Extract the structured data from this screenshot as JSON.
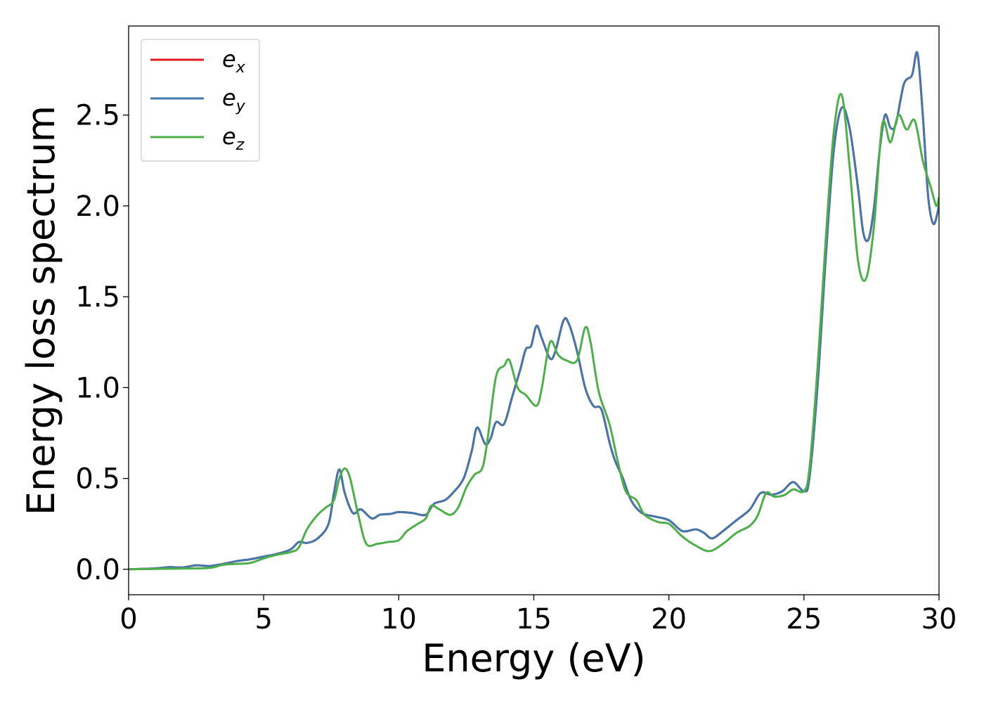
{
  "chart_data": {
    "type": "line",
    "title": "",
    "xlabel": "Energy (eV)",
    "ylabel": "Energy loss spectrum",
    "xlim": [
      0,
      30
    ],
    "ylim": [
      -0.14,
      2.99
    ],
    "xticks": [
      0,
      5,
      10,
      15,
      20,
      25,
      30
    ],
    "xtick_labels": [
      "0",
      "5",
      "10",
      "15",
      "20",
      "25",
      "30"
    ],
    "yticks": [
      0.0,
      0.5,
      1.0,
      1.5,
      2.0,
      2.5
    ],
    "ytick_labels": [
      "0.0",
      "0.5",
      "1.0",
      "1.5",
      "2.0",
      "2.5"
    ],
    "grid": false,
    "legend_position": "top-left",
    "series": [
      {
        "name": "e_x",
        "label_main": "e",
        "label_sub": "x",
        "color": "#e41a1c",
        "points": [
          [
            0,
            0
          ],
          [
            1,
            0.005
          ],
          [
            1.5,
            0.012
          ],
          [
            2,
            0.01
          ],
          [
            2.5,
            0.022
          ],
          [
            3,
            0.018
          ],
          [
            3.5,
            0.03
          ],
          [
            4,
            0.045
          ],
          [
            4.5,
            0.055
          ],
          [
            5,
            0.07
          ],
          [
            5.5,
            0.085
          ],
          [
            6,
            0.11
          ],
          [
            6.3,
            0.15
          ],
          [
            6.6,
            0.145
          ],
          [
            7,
            0.17
          ],
          [
            7.4,
            0.25
          ],
          [
            7.6,
            0.42
          ],
          [
            7.8,
            0.55
          ],
          [
            8,
            0.42
          ],
          [
            8.3,
            0.31
          ],
          [
            8.6,
            0.33
          ],
          [
            9,
            0.28
          ],
          [
            9.3,
            0.3
          ],
          [
            9.7,
            0.305
          ],
          [
            10,
            0.315
          ],
          [
            10.5,
            0.31
          ],
          [
            11,
            0.3
          ],
          [
            11.3,
            0.36
          ],
          [
            11.7,
            0.38
          ],
          [
            12,
            0.42
          ],
          [
            12.4,
            0.5
          ],
          [
            12.7,
            0.65
          ],
          [
            12.9,
            0.78
          ],
          [
            13.2,
            0.69
          ],
          [
            13.4,
            0.72
          ],
          [
            13.6,
            0.81
          ],
          [
            13.9,
            0.8
          ],
          [
            14.2,
            0.95
          ],
          [
            14.5,
            1.1
          ],
          [
            14.7,
            1.21
          ],
          [
            14.9,
            1.23
          ],
          [
            15.1,
            1.34
          ],
          [
            15.3,
            1.27
          ],
          [
            15.6,
            1.16
          ],
          [
            15.8,
            1.2
          ],
          [
            16.1,
            1.37
          ],
          [
            16.3,
            1.35
          ],
          [
            16.6,
            1.2
          ],
          [
            16.9,
            1.0
          ],
          [
            17.2,
            0.9
          ],
          [
            17.5,
            0.88
          ],
          [
            17.8,
            0.7
          ],
          [
            18,
            0.6
          ],
          [
            18.3,
            0.5
          ],
          [
            18.6,
            0.38
          ],
          [
            19,
            0.31
          ],
          [
            19.5,
            0.29
          ],
          [
            20,
            0.27
          ],
          [
            20.5,
            0.21
          ],
          [
            21,
            0.22
          ],
          [
            21.3,
            0.2
          ],
          [
            21.6,
            0.17
          ],
          [
            22,
            0.21
          ],
          [
            22.5,
            0.27
          ],
          [
            23,
            0.33
          ],
          [
            23.4,
            0.42
          ],
          [
            23.8,
            0.41
          ],
          [
            24.2,
            0.43
          ],
          [
            24.6,
            0.48
          ],
          [
            25,
            0.43
          ],
          [
            25.2,
            0.5
          ],
          [
            25.5,
            1.0
          ],
          [
            25.8,
            1.7
          ],
          [
            26.1,
            2.3
          ],
          [
            26.4,
            2.54
          ],
          [
            26.7,
            2.42
          ],
          [
            27,
            2.1
          ],
          [
            27.2,
            1.85
          ],
          [
            27.4,
            1.82
          ],
          [
            27.6,
            2.0
          ],
          [
            27.8,
            2.3
          ],
          [
            28,
            2.5
          ],
          [
            28.2,
            2.43
          ],
          [
            28.4,
            2.45
          ],
          [
            28.7,
            2.67
          ],
          [
            29,
            2.72
          ],
          [
            29.2,
            2.84
          ],
          [
            29.4,
            2.5
          ],
          [
            29.6,
            2.05
          ],
          [
            29.8,
            1.9
          ],
          [
            30,
            2.0
          ]
        ]
      },
      {
        "name": "e_y",
        "label_main": "e",
        "label_sub": "y",
        "color": "#4477aa",
        "points": [
          [
            0,
            0
          ],
          [
            1,
            0.005
          ],
          [
            1.5,
            0.012
          ],
          [
            2,
            0.01
          ],
          [
            2.5,
            0.022
          ],
          [
            3,
            0.018
          ],
          [
            3.5,
            0.03
          ],
          [
            4,
            0.045
          ],
          [
            4.5,
            0.055
          ],
          [
            5,
            0.07
          ],
          [
            5.5,
            0.085
          ],
          [
            6,
            0.11
          ],
          [
            6.3,
            0.15
          ],
          [
            6.6,
            0.145
          ],
          [
            7,
            0.17
          ],
          [
            7.4,
            0.25
          ],
          [
            7.6,
            0.42
          ],
          [
            7.8,
            0.55
          ],
          [
            8,
            0.42
          ],
          [
            8.3,
            0.31
          ],
          [
            8.6,
            0.33
          ],
          [
            9,
            0.28
          ],
          [
            9.3,
            0.3
          ],
          [
            9.7,
            0.305
          ],
          [
            10,
            0.315
          ],
          [
            10.5,
            0.31
          ],
          [
            11,
            0.3
          ],
          [
            11.3,
            0.36
          ],
          [
            11.7,
            0.38
          ],
          [
            12,
            0.42
          ],
          [
            12.4,
            0.5
          ],
          [
            12.7,
            0.65
          ],
          [
            12.9,
            0.78
          ],
          [
            13.2,
            0.69
          ],
          [
            13.4,
            0.72
          ],
          [
            13.6,
            0.81
          ],
          [
            13.9,
            0.8
          ],
          [
            14.2,
            0.95
          ],
          [
            14.5,
            1.1
          ],
          [
            14.7,
            1.21
          ],
          [
            14.9,
            1.23
          ],
          [
            15.1,
            1.34
          ],
          [
            15.3,
            1.27
          ],
          [
            15.6,
            1.16
          ],
          [
            15.8,
            1.2
          ],
          [
            16.1,
            1.37
          ],
          [
            16.3,
            1.35
          ],
          [
            16.6,
            1.2
          ],
          [
            16.9,
            1.0
          ],
          [
            17.2,
            0.9
          ],
          [
            17.5,
            0.88
          ],
          [
            17.8,
            0.7
          ],
          [
            18,
            0.6
          ],
          [
            18.3,
            0.5
          ],
          [
            18.6,
            0.38
          ],
          [
            19,
            0.31
          ],
          [
            19.5,
            0.29
          ],
          [
            20,
            0.27
          ],
          [
            20.5,
            0.21
          ],
          [
            21,
            0.22
          ],
          [
            21.3,
            0.2
          ],
          [
            21.6,
            0.17
          ],
          [
            22,
            0.21
          ],
          [
            22.5,
            0.27
          ],
          [
            23,
            0.33
          ],
          [
            23.4,
            0.42
          ],
          [
            23.8,
            0.41
          ],
          [
            24.2,
            0.43
          ],
          [
            24.6,
            0.48
          ],
          [
            25,
            0.43
          ],
          [
            25.2,
            0.5
          ],
          [
            25.5,
            1.0
          ],
          [
            25.8,
            1.7
          ],
          [
            26.1,
            2.3
          ],
          [
            26.4,
            2.54
          ],
          [
            26.7,
            2.42
          ],
          [
            27,
            2.1
          ],
          [
            27.2,
            1.85
          ],
          [
            27.4,
            1.82
          ],
          [
            27.6,
            2.0
          ],
          [
            27.8,
            2.3
          ],
          [
            28,
            2.5
          ],
          [
            28.2,
            2.43
          ],
          [
            28.4,
            2.45
          ],
          [
            28.7,
            2.67
          ],
          [
            29,
            2.72
          ],
          [
            29.2,
            2.84
          ],
          [
            29.4,
            2.5
          ],
          [
            29.6,
            2.05
          ],
          [
            29.8,
            1.9
          ],
          [
            30,
            2.0
          ]
        ]
      },
      {
        "name": "e_z",
        "label_main": "e",
        "label_sub": "z",
        "color": "#4daf4a",
        "points": [
          [
            0,
            0
          ],
          [
            1,
            0.002
          ],
          [
            2,
            0.004
          ],
          [
            3,
            0.008
          ],
          [
            3.5,
            0.025
          ],
          [
            4,
            0.03
          ],
          [
            4.5,
            0.035
          ],
          [
            5,
            0.06
          ],
          [
            5.5,
            0.08
          ],
          [
            6,
            0.095
          ],
          [
            6.3,
            0.12
          ],
          [
            6.6,
            0.22
          ],
          [
            7,
            0.3
          ],
          [
            7.3,
            0.34
          ],
          [
            7.6,
            0.38
          ],
          [
            7.8,
            0.5
          ],
          [
            8,
            0.555
          ],
          [
            8.2,
            0.5
          ],
          [
            8.5,
            0.3
          ],
          [
            8.8,
            0.14
          ],
          [
            9.2,
            0.14
          ],
          [
            9.6,
            0.15
          ],
          [
            10,
            0.16
          ],
          [
            10.3,
            0.21
          ],
          [
            10.7,
            0.25
          ],
          [
            11,
            0.28
          ],
          [
            11.2,
            0.35
          ],
          [
            11.5,
            0.33
          ],
          [
            11.9,
            0.3
          ],
          [
            12.2,
            0.34
          ],
          [
            12.5,
            0.45
          ],
          [
            12.8,
            0.52
          ],
          [
            13.1,
            0.56
          ],
          [
            13.3,
            0.73
          ],
          [
            13.6,
            1.06
          ],
          [
            13.9,
            1.12
          ],
          [
            14.1,
            1.15
          ],
          [
            14.4,
            1.0
          ],
          [
            14.7,
            0.96
          ],
          [
            15.1,
            0.9
          ],
          [
            15.3,
            1.0
          ],
          [
            15.6,
            1.25
          ],
          [
            15.9,
            1.18
          ],
          [
            16.2,
            1.15
          ],
          [
            16.6,
            1.15
          ],
          [
            16.9,
            1.33
          ],
          [
            17.1,
            1.25
          ],
          [
            17.4,
            0.98
          ],
          [
            17.8,
            0.8
          ],
          [
            18.1,
            0.6
          ],
          [
            18.4,
            0.43
          ],
          [
            18.8,
            0.38
          ],
          [
            19.1,
            0.3
          ],
          [
            19.6,
            0.26
          ],
          [
            20,
            0.25
          ],
          [
            20.5,
            0.18
          ],
          [
            21,
            0.13
          ],
          [
            21.5,
            0.1
          ],
          [
            22,
            0.14
          ],
          [
            22.5,
            0.2
          ],
          [
            23,
            0.24
          ],
          [
            23.3,
            0.3
          ],
          [
            23.6,
            0.42
          ],
          [
            23.9,
            0.4
          ],
          [
            24.3,
            0.41
          ],
          [
            24.6,
            0.44
          ],
          [
            25,
            0.43
          ],
          [
            25.2,
            0.55
          ],
          [
            25.5,
            1.1
          ],
          [
            25.8,
            1.8
          ],
          [
            26.1,
            2.4
          ],
          [
            26.4,
            2.61
          ],
          [
            26.7,
            2.2
          ],
          [
            27,
            1.7
          ],
          [
            27.3,
            1.6
          ],
          [
            27.6,
            1.9
          ],
          [
            27.9,
            2.45
          ],
          [
            28.2,
            2.35
          ],
          [
            28.5,
            2.5
          ],
          [
            28.8,
            2.42
          ],
          [
            29.1,
            2.47
          ],
          [
            29.4,
            2.25
          ],
          [
            29.7,
            2.1
          ],
          [
            29.9,
            2.0
          ],
          [
            30,
            2.05
          ]
        ]
      }
    ]
  }
}
